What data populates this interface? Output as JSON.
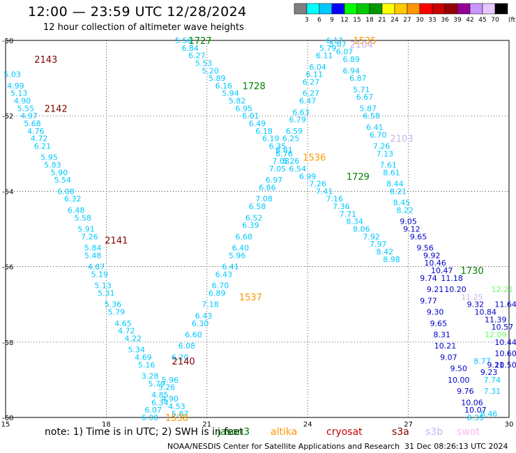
{
  "title": "12:00 — 23:59 UTC 12/28/2024",
  "subtitle": "12 hour collection of altimeter wave heights",
  "colorbar": {
    "unit": "(ft)",
    "colors": [
      "#808080",
      "#00ffff",
      "#00c8ff",
      "#0000ff",
      "#00ff00",
      "#00c800",
      "#009600",
      "#ffff00",
      "#ffc800",
      "#ff9600",
      "#ff0000",
      "#c80000",
      "#960000",
      "#960096",
      "#c896ff",
      "#e6c8ff",
      "#000000"
    ],
    "labels": [
      "3",
      "6",
      "9",
      "12",
      "15",
      "18",
      "21",
      "24",
      "27",
      "30",
      "33",
      "36",
      "39",
      "42",
      "45",
      "70"
    ]
  },
  "axes": {
    "lon_ticks": [
      "15",
      "18",
      "21",
      "24",
      "27",
      "30"
    ],
    "lat_ticks": [
      "-50",
      "-52",
      "-54",
      "-56",
      "-58",
      "-60"
    ],
    "lon_range": [
      15,
      30
    ],
    "lat_range": [
      -60,
      -50
    ]
  },
  "tracks": [
    {
      "id": "2143",
      "color": "#800000",
      "lon": 16.2,
      "lat": -50.5
    },
    {
      "id": "2142",
      "color": "#800000",
      "lon": 16.5,
      "lat": -51.8
    },
    {
      "id": "2141",
      "color": "#800000",
      "lon": 18.3,
      "lat": -55.3
    },
    {
      "id": "2140",
      "color": "#800000",
      "lon": 20.3,
      "lat": -58.5
    },
    {
      "id": "1727",
      "color": "#008000",
      "lon": 20.8,
      "lat": -50.0
    },
    {
      "id": "1728",
      "color": "#008000",
      "lon": 22.4,
      "lat": -51.2
    },
    {
      "id": "1729",
      "color": "#008000",
      "lon": 25.5,
      "lat": -53.6
    },
    {
      "id": "1730",
      "color": "#008000",
      "lon": 28.9,
      "lat": -56.1
    },
    {
      "id": "1535",
      "color": "#ff9600",
      "lon": 25.7,
      "lat": -50.0
    },
    {
      "id": "1536",
      "color": "#ff9600",
      "lon": 24.2,
      "lat": -53.1
    },
    {
      "id": "1537",
      "color": "#ff9600",
      "lon": 22.3,
      "lat": -56.8
    },
    {
      "id": "1538",
      "color": "#ff9600",
      "lon": 20.1,
      "lat": -60.0
    },
    {
      "id": "2104",
      "color": "#c8b4f0",
      "lon": 25.6,
      "lat": -50.1
    },
    {
      "id": "2103",
      "color": "#c8b4f0",
      "lon": 26.8,
      "lat": -52.6
    }
  ],
  "swh_points": [
    {
      "v": "5.03",
      "lon": 15.2,
      "lat": -50.9,
      "c": "#00c8ff"
    },
    {
      "v": "4.99",
      "lon": 15.3,
      "lat": -51.2,
      "c": "#00c8ff"
    },
    {
      "v": "5.13",
      "lon": 15.4,
      "lat": -51.4,
      "c": "#00c8ff"
    },
    {
      "v": "4.90",
      "lon": 15.5,
      "lat": -51.6,
      "c": "#00c8ff"
    },
    {
      "v": "5.55",
      "lon": 15.6,
      "lat": -51.8,
      "c": "#00c8ff"
    },
    {
      "v": "4.97",
      "lon": 15.7,
      "lat": -52.0,
      "c": "#00c8ff"
    },
    {
      "v": "5.68",
      "lon": 15.8,
      "lat": -52.2,
      "c": "#00c8ff"
    },
    {
      "v": "4.76",
      "lon": 15.9,
      "lat": -52.4,
      "c": "#00c8ff"
    },
    {
      "v": "4.72",
      "lon": 16.0,
      "lat": -52.6,
      "c": "#00c8ff"
    },
    {
      "v": "6.21",
      "lon": 16.1,
      "lat": -52.8,
      "c": "#00c8ff"
    },
    {
      "v": "5.95",
      "lon": 16.3,
      "lat": -53.1,
      "c": "#00c8ff"
    },
    {
      "v": "5.83",
      "lon": 16.4,
      "lat": -53.3,
      "c": "#00c8ff"
    },
    {
      "v": "5.90",
      "lon": 16.6,
      "lat": -53.5,
      "c": "#00c8ff"
    },
    {
      "v": "5.54",
      "lon": 16.7,
      "lat": -53.7,
      "c": "#00c8ff"
    },
    {
      "v": "6.08",
      "lon": 16.8,
      "lat": -54.0,
      "c": "#00c8ff"
    },
    {
      "v": "6.32",
      "lon": 17.0,
      "lat": -54.2,
      "c": "#00c8ff"
    },
    {
      "v": "6.48",
      "lon": 17.1,
      "lat": -54.5,
      "c": "#00c8ff"
    },
    {
      "v": "5.58",
      "lon": 17.3,
      "lat": -54.7,
      "c": "#00c8ff"
    },
    {
      "v": "5.91",
      "lon": 17.4,
      "lat": -55.0,
      "c": "#00c8ff"
    },
    {
      "v": "7.26",
      "lon": 17.5,
      "lat": -55.2,
      "c": "#00c8ff"
    },
    {
      "v": "5.84",
      "lon": 17.6,
      "lat": -55.5,
      "c": "#00c8ff"
    },
    {
      "v": "5.48",
      "lon": 17.6,
      "lat": -55.7,
      "c": "#00c8ff"
    },
    {
      "v": "4.87",
      "lon": 17.7,
      "lat": -56.0,
      "c": "#00c8ff"
    },
    {
      "v": "5.19",
      "lon": 17.8,
      "lat": -56.2,
      "c": "#00c8ff"
    },
    {
      "v": "5.13",
      "lon": 17.9,
      "lat": -56.5,
      "c": "#00c8ff"
    },
    {
      "v": "5.31",
      "lon": 18.0,
      "lat": -56.7,
      "c": "#00c8ff"
    },
    {
      "v": "5.36",
      "lon": 18.2,
      "lat": -57.0,
      "c": "#00c8ff"
    },
    {
      "v": "5.79",
      "lon": 18.3,
      "lat": -57.2,
      "c": "#00c8ff"
    },
    {
      "v": "4.65",
      "lon": 18.5,
      "lat": -57.5,
      "c": "#00c8ff"
    },
    {
      "v": "4.72",
      "lon": 18.6,
      "lat": -57.7,
      "c": "#00c8ff"
    },
    {
      "v": "4.22",
      "lon": 18.8,
      "lat": -57.9,
      "c": "#00c8ff"
    },
    {
      "v": "5.34",
      "lon": 18.9,
      "lat": -58.2,
      "c": "#00c8ff"
    },
    {
      "v": "4.69",
      "lon": 19.1,
      "lat": -58.4,
      "c": "#00c8ff"
    },
    {
      "v": "5.16",
      "lon": 19.2,
      "lat": -58.6,
      "c": "#00c8ff"
    },
    {
      "v": "3.28",
      "lon": 19.3,
      "lat": -58.9,
      "c": "#00c8ff"
    },
    {
      "v": "5.79",
      "lon": 19.5,
      "lat": -59.1,
      "c": "#00c8ff"
    },
    {
      "v": "4.85",
      "lon": 19.6,
      "lat": -59.4,
      "c": "#00c8ff"
    },
    {
      "v": "6.34",
      "lon": 19.6,
      "lat": -59.6,
      "c": "#00c8ff"
    },
    {
      "v": "6.07",
      "lon": 19.4,
      "lat": -59.8,
      "c": "#00c8ff"
    },
    {
      "v": "6.00",
      "lon": 19.3,
      "lat": -60.0,
      "c": "#00c8ff"
    },
    {
      "v": "5.87",
      "lon": 20.2,
      "lat": -59.9,
      "c": "#00c8ff"
    },
    {
      "v": "4.53",
      "lon": 20.1,
      "lat": -59.7,
      "c": "#00c8ff"
    },
    {
      "v": "4.90",
      "lon": 19.9,
      "lat": -59.5,
      "c": "#00c8ff"
    },
    {
      "v": "5.26",
      "lon": 19.8,
      "lat": -59.2,
      "c": "#00c8ff"
    },
    {
      "v": "5.96",
      "lon": 19.9,
      "lat": -59.0,
      "c": "#00c8ff"
    },
    {
      "v": "6.20",
      "lon": 20.2,
      "lat": -58.4,
      "c": "#00c8ff"
    },
    {
      "v": "6.08",
      "lon": 20.4,
      "lat": -58.1,
      "c": "#00c8ff"
    },
    {
      "v": "6.60",
      "lon": 20.6,
      "lat": -57.8,
      "c": "#00c8ff"
    },
    {
      "v": "6.30",
      "lon": 20.8,
      "lat": -57.5,
      "c": "#00c8ff"
    },
    {
      "v": "6.43",
      "lon": 20.9,
      "lat": -57.3,
      "c": "#00c8ff"
    },
    {
      "v": "7.18",
      "lon": 21.1,
      "lat": -57.0,
      "c": "#00c8ff"
    },
    {
      "v": "6.89",
      "lon": 21.3,
      "lat": -56.7,
      "c": "#00c8ff"
    },
    {
      "v": "6.70",
      "lon": 21.4,
      "lat": -56.5,
      "c": "#00c8ff"
    },
    {
      "v": "6.43",
      "lon": 21.5,
      "lat": -56.2,
      "c": "#00c8ff"
    },
    {
      "v": "6.41",
      "lon": 21.7,
      "lat": -56.0,
      "c": "#00c8ff"
    },
    {
      "v": "5.96",
      "lon": 21.9,
      "lat": -55.7,
      "c": "#00c8ff"
    },
    {
      "v": "6.40",
      "lon": 22.0,
      "lat": -55.5,
      "c": "#00c8ff"
    },
    {
      "v": "6.68",
      "lon": 22.1,
      "lat": -55.2,
      "c": "#00c8ff"
    },
    {
      "v": "6.39",
      "lon": 22.3,
      "lat": -54.9,
      "c": "#00c8ff"
    },
    {
      "v": "6.52",
      "lon": 22.4,
      "lat": -54.7,
      "c": "#00c8ff"
    },
    {
      "v": "6.58",
      "lon": 22.5,
      "lat": -54.4,
      "c": "#00c8ff"
    },
    {
      "v": "7.08",
      "lon": 22.7,
      "lat": -54.2,
      "c": "#00c8ff"
    },
    {
      "v": "6.86",
      "lon": 22.8,
      "lat": -53.9,
      "c": "#00c8ff"
    },
    {
      "v": "6.97",
      "lon": 23.0,
      "lat": -53.7,
      "c": "#00c8ff"
    },
    {
      "v": "7.05",
      "lon": 23.1,
      "lat": -53.4,
      "c": "#00c8ff"
    },
    {
      "v": "7.08",
      "lon": 23.2,
      "lat": -53.2,
      "c": "#00c8ff"
    },
    {
      "v": "6.81",
      "lon": 23.3,
      "lat": -52.9,
      "c": "#00c8ff"
    },
    {
      "v": "6.25",
      "lon": 23.5,
      "lat": -52.6,
      "c": "#00c8ff"
    },
    {
      "v": "6.59",
      "lon": 23.6,
      "lat": -52.4,
      "c": "#00c8ff"
    },
    {
      "v": "6.79",
      "lon": 23.7,
      "lat": -52.1,
      "c": "#00c8ff"
    },
    {
      "v": "6.63",
      "lon": 23.8,
      "lat": -51.9,
      "c": "#00c8ff"
    },
    {
      "v": "6.47",
      "lon": 24.0,
      "lat": -51.6,
      "c": "#00c8ff"
    },
    {
      "v": "6.27",
      "lon": 24.1,
      "lat": -51.4,
      "c": "#00c8ff"
    },
    {
      "v": "6.27",
      "lon": 24.1,
      "lat": -51.1,
      "c": "#00c8ff"
    },
    {
      "v": "6.11",
      "lon": 24.2,
      "lat": -50.9,
      "c": "#00c8ff"
    },
    {
      "v": "6.04",
      "lon": 24.3,
      "lat": -50.7,
      "c": "#00c8ff"
    },
    {
      "v": "6.11",
      "lon": 24.5,
      "lat": -50.4,
      "c": "#00c8ff"
    },
    {
      "v": "5.79",
      "lon": 24.6,
      "lat": -50.2,
      "c": "#00c8ff"
    },
    {
      "v": "6.17",
      "lon": 24.8,
      "lat": -50.0,
      "c": "#00c8ff"
    },
    {
      "v": "5.87",
      "lon": 24.9,
      "lat": -50.1,
      "c": "#00c8ff"
    },
    {
      "v": "6.07",
      "lon": 25.1,
      "lat": -50.3,
      "c": "#00c8ff"
    },
    {
      "v": "6.89",
      "lon": 25.3,
      "lat": -50.5,
      "c": "#00c8ff"
    },
    {
      "v": "6.94",
      "lon": 25.3,
      "lat": -50.8,
      "c": "#00c8ff"
    },
    {
      "v": "6.87",
      "lon": 25.5,
      "lat": -51.0,
      "c": "#00c8ff"
    },
    {
      "v": "5.71",
      "lon": 25.6,
      "lat": -51.3,
      "c": "#00c8ff"
    },
    {
      "v": "6.67",
      "lon": 25.7,
      "lat": -51.5,
      "c": "#00c8ff"
    },
    {
      "v": "5.87",
      "lon": 25.8,
      "lat": -51.8,
      "c": "#00c8ff"
    },
    {
      "v": "6.58",
      "lon": 25.9,
      "lat": -52.0,
      "c": "#00c8ff"
    },
    {
      "v": "6.41",
      "lon": 26.0,
      "lat": -52.3,
      "c": "#00c8ff"
    },
    {
      "v": "6.70",
      "lon": 26.1,
      "lat": -52.5,
      "c": "#00c8ff"
    },
    {
      "v": "7.26",
      "lon": 26.2,
      "lat": -52.8,
      "c": "#00c8ff"
    },
    {
      "v": "7.13",
      "lon": 26.3,
      "lat": -53.0,
      "c": "#00c8ff"
    },
    {
      "v": "7.61",
      "lon": 26.4,
      "lat": -53.3,
      "c": "#00c8ff"
    },
    {
      "v": "8.61",
      "lon": 26.5,
      "lat": -53.5,
      "c": "#00c8ff"
    },
    {
      "v": "8.44",
      "lon": 26.6,
      "lat": -53.8,
      "c": "#00c8ff"
    },
    {
      "v": "8.21",
      "lon": 26.7,
      "lat": -54.0,
      "c": "#00c8ff"
    },
    {
      "v": "8.45",
      "lon": 26.8,
      "lat": -54.3,
      "c": "#00c8ff"
    },
    {
      "v": "8.22",
      "lon": 26.9,
      "lat": -54.5,
      "c": "#00c8ff"
    },
    {
      "v": "9.05",
      "lon": 27.0,
      "lat": -54.8,
      "c": "#0000c8"
    },
    {
      "v": "9.12",
      "lon": 27.1,
      "lat": -55.0,
      "c": "#0000c8"
    },
    {
      "v": "5.56",
      "lon": 20.3,
      "lat": -50.0,
      "c": "#00c8ff"
    },
    {
      "v": "6.84",
      "lon": 20.5,
      "lat": -50.2,
      "c": "#00c8ff"
    },
    {
      "v": "6.27",
      "lon": 20.7,
      "lat": -50.4,
      "c": "#00c8ff"
    },
    {
      "v": "5.53",
      "lon": 20.9,
      "lat": -50.6,
      "c": "#00c8ff"
    },
    {
      "v": "5.20",
      "lon": 21.1,
      "lat": -50.8,
      "c": "#00c8ff"
    },
    {
      "v": "5.89",
      "lon": 21.3,
      "lat": -51.0,
      "c": "#00c8ff"
    },
    {
      "v": "6.16",
      "lon": 21.5,
      "lat": -51.2,
      "c": "#00c8ff"
    },
    {
      "v": "5.94",
      "lon": 21.7,
      "lat": -51.4,
      "c": "#00c8ff"
    },
    {
      "v": "5.82",
      "lon": 21.9,
      "lat": -51.6,
      "c": "#00c8ff"
    },
    {
      "v": "6.95",
      "lon": 22.1,
      "lat": -51.8,
      "c": "#00c8ff"
    },
    {
      "v": "6.01",
      "lon": 22.3,
      "lat": -52.0,
      "c": "#00c8ff"
    },
    {
      "v": "6.49",
      "lon": 22.5,
      "lat": -52.2,
      "c": "#00c8ff"
    },
    {
      "v": "6.18",
      "lon": 22.7,
      "lat": -52.4,
      "c": "#00c8ff"
    },
    {
      "v": "6.19",
      "lon": 22.9,
      "lat": -52.6,
      "c": "#00c8ff"
    },
    {
      "v": "6.35",
      "lon": 23.1,
      "lat": -52.8,
      "c": "#00c8ff"
    },
    {
      "v": "6.76",
      "lon": 23.3,
      "lat": -53.0,
      "c": "#00c8ff"
    },
    {
      "v": "6.26",
      "lon": 23.5,
      "lat": -53.2,
      "c": "#00c8ff"
    },
    {
      "v": "6.54",
      "lon": 23.7,
      "lat": -53.4,
      "c": "#00c8ff"
    },
    {
      "v": "6.99",
      "lon": 24.0,
      "lat": -53.6,
      "c": "#00c8ff"
    },
    {
      "v": "7.26",
      "lon": 24.3,
      "lat": -53.8,
      "c": "#00c8ff"
    },
    {
      "v": "7.41",
      "lon": 24.5,
      "lat": -54.0,
      "c": "#00c8ff"
    },
    {
      "v": "7.16",
      "lon": 24.8,
      "lat": -54.2,
      "c": "#00c8ff"
    },
    {
      "v": "7.36",
      "lon": 25.0,
      "lat": -54.4,
      "c": "#00c8ff"
    },
    {
      "v": "7.71",
      "lon": 25.2,
      "lat": -54.6,
      "c": "#00c8ff"
    },
    {
      "v": "8.34",
      "lon": 25.4,
      "lat": -54.8,
      "c": "#00c8ff"
    },
    {
      "v": "8.06",
      "lon": 25.6,
      "lat": -55.0,
      "c": "#00c8ff"
    },
    {
      "v": "7.92",
      "lon": 25.9,
      "lat": -55.2,
      "c": "#00c8ff"
    },
    {
      "v": "7.97",
      "lon": 26.1,
      "lat": -55.4,
      "c": "#00c8ff"
    },
    {
      "v": "8.42",
      "lon": 26.3,
      "lat": -55.6,
      "c": "#00c8ff"
    },
    {
      "v": "8.98",
      "lon": 26.5,
      "lat": -55.8,
      "c": "#00c8ff"
    },
    {
      "v": "9.65",
      "lon": 27.3,
      "lat": -55.2,
      "c": "#0000c8"
    },
    {
      "v": "9.56",
      "lon": 27.5,
      "lat": -55.5,
      "c": "#0000c8"
    },
    {
      "v": "9.92",
      "lon": 27.7,
      "lat": -55.7,
      "c": "#0000c8"
    },
    {
      "v": "10.46",
      "lon": 27.8,
      "lat": -55.9,
      "c": "#0000c8"
    },
    {
      "v": "10.47",
      "lon": 28.0,
      "lat": -56.1,
      "c": "#0000c8"
    },
    {
      "v": "9.74",
      "lon": 27.6,
      "lat": -56.3,
      "c": "#0000c8"
    },
    {
      "v": "11.18",
      "lon": 28.3,
      "lat": -56.3,
      "c": "#0000c8"
    },
    {
      "v": "9.21",
      "lon": 27.8,
      "lat": -56.6,
      "c": "#0000c8"
    },
    {
      "v": "10.20",
      "lon": 28.4,
      "lat": -56.6,
      "c": "#0000c8"
    },
    {
      "v": "11.25",
      "lon": 28.9,
      "lat": -56.8,
      "c": "#c8b4f0"
    },
    {
      "v": "9.77",
      "lon": 27.6,
      "lat": -56.9,
      "c": "#0000c8"
    },
    {
      "v": "9.32",
      "lon": 29.0,
      "lat": -57.0,
      "c": "#0000c8"
    },
    {
      "v": "9.30",
      "lon": 27.8,
      "lat": -57.2,
      "c": "#0000c8"
    },
    {
      "v": "10.84",
      "lon": 29.3,
      "lat": -57.2,
      "c": "#0000c8"
    },
    {
      "v": "11.39",
      "lon": 29.6,
      "lat": -57.4,
      "c": "#0000c8"
    },
    {
      "v": "9.65",
      "lon": 27.9,
      "lat": -57.5,
      "c": "#0000c8"
    },
    {
      "v": "10.57",
      "lon": 29.8,
      "lat": -57.6,
      "c": "#0000c8"
    },
    {
      "v": "8.31",
      "lon": 28.0,
      "lat": -57.8,
      "c": "#0000c8"
    },
    {
      "v": "10.21",
      "lon": 28.1,
      "lat": -58.1,
      "c": "#0000c8"
    },
    {
      "v": "9.07",
      "lon": 28.2,
      "lat": -58.4,
      "c": "#0000c8"
    },
    {
      "v": "9.50",
      "lon": 28.5,
      "lat": -58.7,
      "c": "#0000c8"
    },
    {
      "v": "10.00",
      "lon": 28.5,
      "lat": -59.0,
      "c": "#0000c8"
    },
    {
      "v": "9.76",
      "lon": 28.7,
      "lat": -59.3,
      "c": "#0000c8"
    },
    {
      "v": "10.06",
      "lon": 28.9,
      "lat": -59.6,
      "c": "#0000c8"
    },
    {
      "v": "10.07",
      "lon": 29.0,
      "lat": -59.8,
      "c": "#0000c8"
    },
    {
      "v": "8.77",
      "lon": 29.2,
      "lat": -58.5,
      "c": "#00c8ff"
    },
    {
      "v": "9.23",
      "lon": 29.4,
      "lat": -58.8,
      "c": "#0000c8"
    },
    {
      "v": "9.21",
      "lon": 29.6,
      "lat": -58.6,
      "c": "#0000c8"
    },
    {
      "v": "7.74",
      "lon": 29.5,
      "lat": -59.0,
      "c": "#00c8ff"
    },
    {
      "v": "7.31",
      "lon": 29.5,
      "lat": -59.3,
      "c": "#00c8ff"
    },
    {
      "v": "8.35",
      "lon": 29.0,
      "lat": -60.0,
      "c": "#00c8ff"
    },
    {
      "v": "8.46",
      "lon": 29.4,
      "lat": -59.9,
      "c": "#00c8ff"
    },
    {
      "v": "10.44",
      "lon": 29.9,
      "lat": -58.0,
      "c": "#0000c8"
    },
    {
      "v": "10.60",
      "lon": 29.9,
      "lat": -58.3,
      "c": "#0000c8"
    },
    {
      "v": "10.50",
      "lon": 29.9,
      "lat": -58.6,
      "c": "#0000c8"
    },
    {
      "v": "11.64",
      "lon": 29.9,
      "lat": -57.0,
      "c": "#0000c8"
    },
    {
      "v": "12.21",
      "lon": 29.8,
      "lat": -56.6,
      "c": "#66ff66"
    },
    {
      "v": "12.09",
      "lon": 29.6,
      "lat": -57.8,
      "c": "#66ff66"
    }
  ],
  "note": "note: 1) Time is in UTC; 2) SWH is in feet",
  "satellites": [
    {
      "name": "jason3",
      "color": "#008000"
    },
    {
      "name": "altika",
      "color": "#ff9600"
    },
    {
      "name": "cryosat",
      "color": "#c80000"
    },
    {
      "name": "s3a",
      "color": "#800000"
    },
    {
      "name": "s3b",
      "color": "#c8b4f0"
    },
    {
      "name": "swot",
      "color": "#ffb4f0"
    }
  ],
  "credit": "NOAA/NESDIS Center for Satellite Applications and Research",
  "timestamp": "31 Dec 08:26:13 UTC 2024"
}
